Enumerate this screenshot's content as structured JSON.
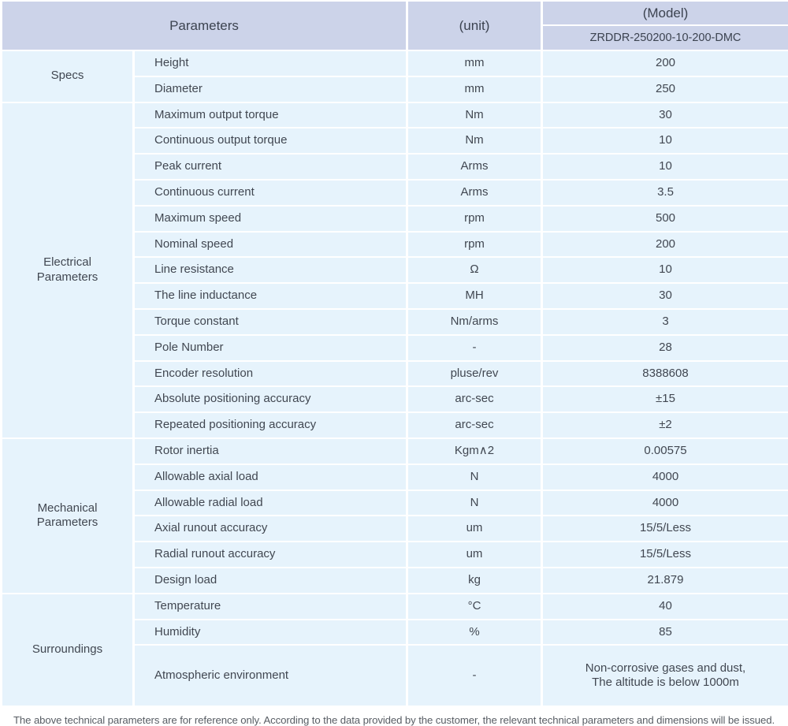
{
  "colors": {
    "header_bg": "#ccd3e9",
    "row_bg": "#e6f3fc",
    "text": "#414751"
  },
  "table": {
    "header": {
      "parameters_label": "Parameters",
      "unit_label": "(unit)",
      "model_label": "(Model)",
      "model_value": "ZRDDR-250200-10-200-DMC"
    },
    "groups": [
      {
        "category": "Specs",
        "rows": [
          {
            "name": "Height",
            "unit": "mm",
            "value": "200"
          },
          {
            "name": "Diameter",
            "unit": "mm",
            "value": "250"
          }
        ]
      },
      {
        "category": "Electrical\nParameters",
        "rows": [
          {
            "name": "Maximum output torque",
            "unit": "Nm",
            "value": "30"
          },
          {
            "name": "Continuous output torque",
            "unit": "Nm",
            "value": "10"
          },
          {
            "name": "Peak current",
            "unit": "Arms",
            "value": "10"
          },
          {
            "name": "Continuous current",
            "unit": "Arms",
            "value": "3.5"
          },
          {
            "name": "Maximum speed",
            "unit": "rpm",
            "value": "500"
          },
          {
            "name": "Nominal speed",
            "unit": "rpm",
            "value": "200"
          },
          {
            "name": "Line resistance",
            "unit": "Ω",
            "value": "10"
          },
          {
            "name": "The line inductance",
            "unit": "MH",
            "value": "30"
          },
          {
            "name": "Torque constant",
            "unit": "Nm/arms",
            "value": "3"
          },
          {
            "name": "Pole Number",
            "unit": "-",
            "value": "28"
          },
          {
            "name": "Encoder resolution",
            "unit": "pluse/rev",
            "value": "8388608"
          },
          {
            "name": "Absolute positioning accuracy",
            "unit": "arc-sec",
            "value": "±15"
          },
          {
            "name": "Repeated positioning accuracy",
            "unit": "arc-sec",
            "value": "±2"
          }
        ]
      },
      {
        "category": "Mechanical\nParameters",
        "rows": [
          {
            "name": "Rotor inertia",
            "unit": "Kgm∧2",
            "value": "0.00575"
          },
          {
            "name": "Allowable axial load",
            "unit": "N",
            "value": "4000"
          },
          {
            "name": "Allowable radial load",
            "unit": "N",
            "value": "4000"
          },
          {
            "name": "Axial runout accuracy",
            "unit": "um",
            "value": "15/5/Less"
          },
          {
            "name": "Radial runout accuracy",
            "unit": "um",
            "value": "15/5/Less"
          },
          {
            "name": "Design load",
            "unit": "kg",
            "value": "21.879"
          }
        ]
      },
      {
        "category": "Surroundings",
        "rows": [
          {
            "name": "Temperature",
            "unit": "°C",
            "value": "40"
          },
          {
            "name": "Humidity",
            "unit": "%",
            "value": "85"
          },
          {
            "name": "Atmospheric environment",
            "unit": "-",
            "value": "Non-corrosive gases and dust,\nThe altitude is below 1000m"
          }
        ]
      }
    ]
  },
  "footer": {
    "note": "The above technical parameters are for reference only. According to the data provided by the customer, the relevant technical parameters and dimensions will be issued."
  }
}
